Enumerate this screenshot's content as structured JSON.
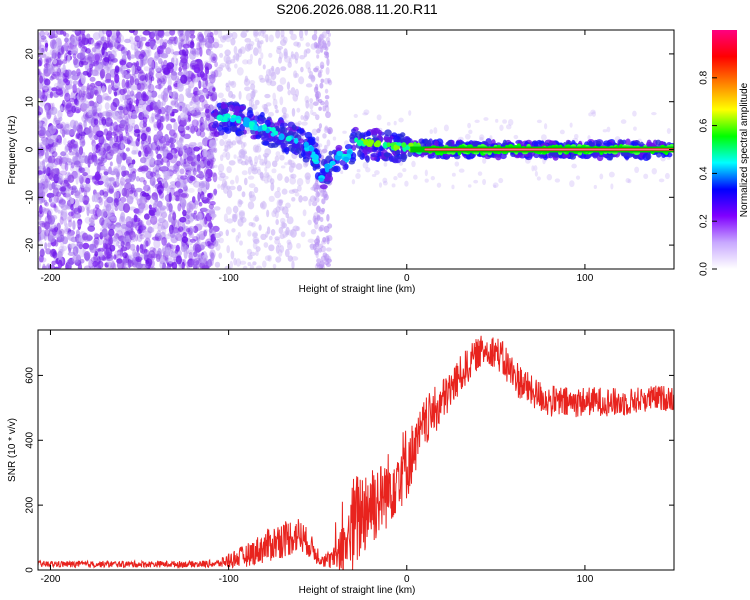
{
  "title": "S206.2026.088.11.20.R11",
  "chart_data": [
    {
      "type": "heatmap",
      "title": "S206.2026.088.11.20.R11",
      "xlabel": "Height of straight line (km)",
      "ylabel": "Frequency (Hz)",
      "xlim": [
        -207,
        150
      ],
      "ylim": [
        -25,
        25
      ],
      "xticks": [
        -200,
        -100,
        0,
        100
      ],
      "yticks": [
        -20,
        -10,
        0,
        10,
        20
      ],
      "xtick_labels": [
        "-200",
        "-100",
        "0",
        "100"
      ],
      "ytick_labels": [
        "-20",
        "-10",
        "0",
        "10",
        "20"
      ],
      "ridge": {
        "x": [
          -107,
          -100,
          -92,
          -85,
          -78,
          -70,
          -63,
          -57,
          -52,
          -48,
          -43,
          -38,
          -33,
          -28,
          -27,
          -22,
          -15,
          -8,
          0,
          15,
          40,
          80,
          120,
          150
        ],
        "freq": [
          6,
          7,
          6,
          5,
          4,
          3,
          2,
          1,
          -1,
          -6,
          -3,
          -1,
          -2,
          3,
          2,
          1,
          1,
          0.5,
          0.5,
          0,
          0,
          0,
          0,
          0
        ]
      },
      "colorbar": {
        "label": "Normalized spectral amplitude",
        "range": [
          0,
          1
        ],
        "ticks": [
          0,
          0.2,
          0.4,
          0.6,
          0.8
        ],
        "tick_labels": [
          "0.0",
          "0.2",
          "0.4",
          "0.6",
          "0.8"
        ],
        "colors": [
          "#ffffff",
          "#c8a8ff",
          "#8000ff",
          "#0000ff",
          "#00ffff",
          "#00ff00",
          "#ffff00",
          "#ff8000",
          "#ff0000",
          "#ff0080"
        ]
      }
    },
    {
      "type": "line",
      "xlabel": "Height of straight line (km)",
      "ylabel": "SNR (10 * v/v)",
      "xlim": [
        -207,
        150
      ],
      "ylim": [
        0,
        740
      ],
      "xticks": [
        -200,
        -100,
        0,
        100
      ],
      "yticks": [
        0,
        200,
        400,
        600
      ],
      "xtick_labels": [
        "-200",
        "-100",
        "0",
        "100"
      ],
      "ytick_labels": [
        "0",
        "200",
        "400",
        "600"
      ],
      "color": "#e8231e",
      "envelope": {
        "x": [
          -207,
          -120,
          -105,
          -100,
          -90,
          -80,
          -70,
          -60,
          -55,
          -50,
          -45,
          -40,
          -35,
          -30,
          -25,
          -20,
          -15,
          -10,
          -5,
          0,
          5,
          10,
          20,
          30,
          40,
          45,
          50,
          55,
          60,
          70,
          80,
          90,
          100,
          110,
          120,
          130,
          140,
          150
        ],
        "mean": [
          18,
          18,
          20,
          30,
          45,
          70,
          95,
          110,
          80,
          45,
          30,
          35,
          70,
          130,
          180,
          210,
          220,
          250,
          300,
          330,
          380,
          450,
          520,
          600,
          670,
          680,
          675,
          640,
          600,
          550,
          520,
          515,
          520,
          520,
          515,
          525,
          530,
          530
        ],
        "spread": [
          10,
          10,
          12,
          25,
          35,
          50,
          60,
          55,
          40,
          30,
          25,
          40,
          90,
          160,
          140,
          150,
          110,
          120,
          120,
          120,
          80,
          80,
          70,
          60,
          50,
          50,
          50,
          60,
          60,
          50,
          50,
          50,
          45,
          45,
          45,
          40,
          40,
          40
        ]
      }
    }
  ]
}
